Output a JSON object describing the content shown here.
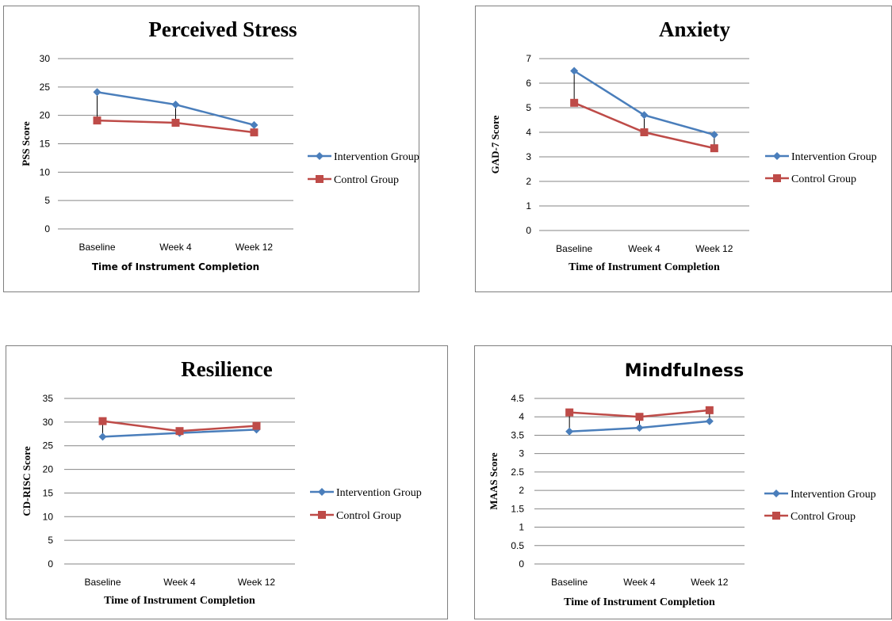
{
  "chart_data": [
    {
      "type": "line",
      "title": "Perceived Stress",
      "xlabel": "Time of Instrument Completion",
      "ylabel": "PSS Score",
      "categories": [
        "Baseline",
        "Week 4",
        "Week 12"
      ],
      "ylim": [
        0,
        30
      ],
      "yticks": [
        0,
        5,
        10,
        15,
        20,
        25,
        30
      ],
      "grid": true,
      "legend": "right",
      "series": [
        {
          "name": "Intervention Group",
          "values": [
            24.1,
            21.9,
            18.3
          ],
          "color": "#4a7ebb",
          "marker": "diamond"
        },
        {
          "name": "Control Group",
          "values": [
            19.1,
            18.7,
            17.0
          ],
          "color": "#be4b48",
          "marker": "square"
        }
      ]
    },
    {
      "type": "line",
      "title": "Anxiety",
      "xlabel": "Time of Instrument  Completion",
      "ylabel": "GAD-7 Score",
      "categories": [
        "Baseline",
        "Week 4",
        "Week 12"
      ],
      "ylim": [
        0,
        7
      ],
      "yticks": [
        0,
        1,
        2,
        3,
        4,
        5,
        6,
        7
      ],
      "grid": true,
      "legend": "right",
      "series": [
        {
          "name": "Intervention Group",
          "values": [
            6.5,
            4.7,
            3.9
          ],
          "color": "#4a7ebb",
          "marker": "diamond"
        },
        {
          "name": "Control Group",
          "values": [
            5.2,
            4.0,
            3.35
          ],
          "color": "#be4b48",
          "marker": "square"
        }
      ]
    },
    {
      "type": "line",
      "title": "Resilience",
      "xlabel": "Time of Instrument Completion",
      "ylabel": "CD-RISC Score",
      "categories": [
        "Baseline",
        "Week 4",
        "Week 12"
      ],
      "ylim": [
        0,
        35
      ],
      "yticks": [
        0,
        5,
        10,
        15,
        20,
        25,
        30,
        35
      ],
      "grid": true,
      "legend": "right",
      "series": [
        {
          "name": "Intervention Group",
          "values": [
            26.9,
            27.7,
            28.4
          ],
          "color": "#4a7ebb",
          "marker": "diamond"
        },
        {
          "name": "Control Group",
          "values": [
            30.2,
            28.1,
            29.2
          ],
          "color": "#be4b48",
          "marker": "square"
        }
      ]
    },
    {
      "type": "line",
      "title": "Mindfulness",
      "xlabel": "Time of Instrument  Completion",
      "ylabel": "MAAS  Score",
      "categories": [
        "Baseline",
        "Week 4",
        "Week 12"
      ],
      "ylim": [
        0,
        4.5
      ],
      "yticks": [
        0,
        0.5,
        1,
        1.5,
        2,
        2.5,
        3,
        3.5,
        4,
        4.5
      ],
      "grid": true,
      "legend": "right",
      "series": [
        {
          "name": "Intervention Group",
          "values": [
            3.6,
            3.7,
            3.88
          ],
          "color": "#4a7ebb",
          "marker": "diamond"
        },
        {
          "name": "Control Group",
          "values": [
            4.12,
            4.0,
            4.18
          ],
          "color": "#be4b48",
          "marker": "square"
        }
      ]
    }
  ]
}
